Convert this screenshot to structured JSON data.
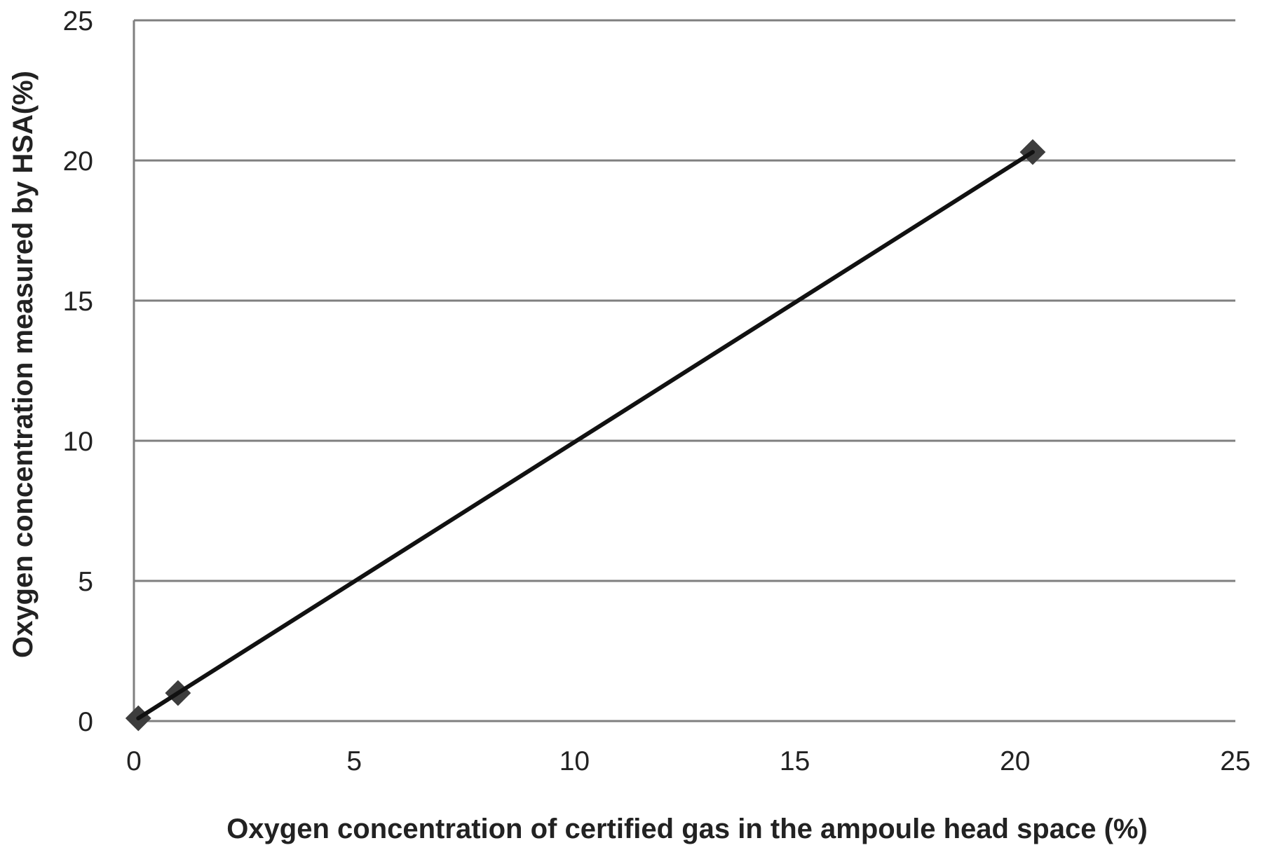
{
  "chart_data": {
    "type": "line",
    "title": "",
    "xlabel": "Oxygen concentration of certified gas in the ampoule head space (%)",
    "ylabel": "Oxygen concentration measured by HSA(%)",
    "xlim": [
      0,
      25
    ],
    "ylim": [
      0,
      25
    ],
    "x_ticks": [
      0,
      5,
      10,
      15,
      20,
      25
    ],
    "y_ticks": [
      0,
      5,
      10,
      15,
      20,
      25
    ],
    "grid": "horizontal",
    "legend": "none",
    "series": [
      {
        "x": [
          0.1,
          1.0,
          20.4
        ],
        "y": [
          0.1,
          1.0,
          20.3
        ],
        "marker": "diamond",
        "color": "#3d3d3d",
        "line_color": "#111111"
      }
    ]
  }
}
